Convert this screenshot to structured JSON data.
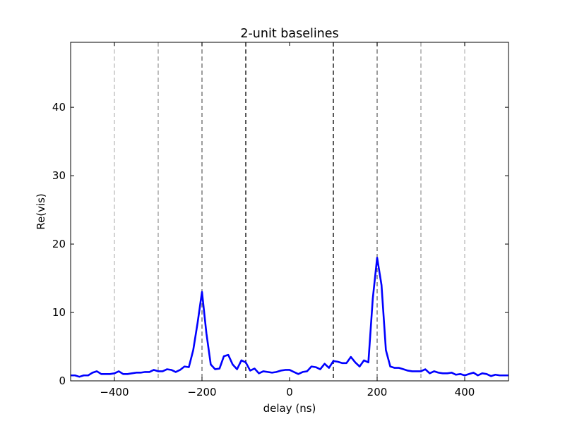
{
  "chart_data": {
    "type": "line",
    "title": "2-unit baselines",
    "xlabel": "delay (ns)",
    "ylabel": "Re(vis)",
    "xlim": [
      -500,
      500
    ],
    "ylim": [
      0,
      49.5
    ],
    "xticks": [
      -400,
      -200,
      0,
      200,
      400
    ],
    "xtick_labels": [
      "−400",
      "−200",
      "0",
      "200",
      "400"
    ],
    "yticks": [
      0,
      10,
      20,
      30,
      40
    ],
    "ytick_labels": [
      "0",
      "10",
      "20",
      "30",
      "40"
    ],
    "grid": false,
    "vlines": [
      {
        "x": -400,
        "color": "#bbbbbb"
      },
      {
        "x": -300,
        "color": "#999999"
      },
      {
        "x": -200,
        "color": "#666666"
      },
      {
        "x": -100,
        "color": "#000000"
      },
      {
        "x": 100,
        "color": "#000000"
      },
      {
        "x": 200,
        "color": "#666666"
      },
      {
        "x": 300,
        "color": "#999999"
      },
      {
        "x": 400,
        "color": "#bbbbbb"
      }
    ],
    "series": [
      {
        "color": "#0000ff",
        "x": [
          -500,
          -490,
          -480,
          -470,
          -460,
          -450,
          -440,
          -430,
          -420,
          -410,
          -400,
          -390,
          -380,
          -370,
          -360,
          -350,
          -340,
          -330,
          -320,
          -310,
          -300,
          -290,
          -280,
          -270,
          -260,
          -250,
          -240,
          -230,
          -220,
          -210,
          -200,
          -190,
          -180,
          -170,
          -160,
          -150,
          -140,
          -130,
          -120,
          -110,
          -100,
          -90,
          -80,
          -70,
          -60,
          -50,
          -40,
          -30,
          -20,
          -10,
          0,
          10,
          20,
          30,
          40,
          50,
          60,
          70,
          80,
          90,
          100,
          110,
          120,
          130,
          140,
          150,
          160,
          170,
          180,
          190,
          200,
          210,
          220,
          230,
          240,
          250,
          260,
          270,
          280,
          290,
          300,
          310,
          320,
          330,
          340,
          350,
          360,
          370,
          380,
          390,
          400,
          410,
          420,
          430,
          440,
          450,
          460,
          470,
          480,
          490,
          500
        ],
        "y": [
          0.8,
          0.8,
          0.6,
          0.8,
          0.8,
          1.2,
          1.4,
          1.0,
          1.0,
          1.0,
          1.1,
          1.4,
          1.0,
          1.0,
          1.1,
          1.2,
          1.2,
          1.3,
          1.3,
          1.6,
          1.4,
          1.4,
          1.7,
          1.6,
          1.3,
          1.6,
          2.1,
          2.0,
          4.5,
          8.5,
          13.0,
          7.0,
          2.4,
          1.7,
          1.8,
          3.6,
          3.8,
          2.4,
          1.7,
          3.0,
          2.7,
          1.5,
          1.8,
          1.1,
          1.4,
          1.3,
          1.2,
          1.3,
          1.5,
          1.6,
          1.6,
          1.3,
          1.0,
          1.3,
          1.4,
          2.1,
          2.0,
          1.7,
          2.5,
          1.9,
          2.9,
          2.8,
          2.6,
          2.6,
          3.5,
          2.7,
          2.1,
          3.0,
          2.7,
          12.0,
          18.0,
          14.0,
          4.5,
          2.1,
          1.9,
          1.9,
          1.7,
          1.5,
          1.4,
          1.4,
          1.4,
          1.7,
          1.1,
          1.4,
          1.2,
          1.1,
          1.1,
          1.2,
          0.9,
          1.0,
          0.8,
          1.0,
          1.2,
          0.8,
          1.1,
          1.0,
          0.7,
          0.9,
          0.8,
          0.8,
          0.8
        ]
      }
    ]
  }
}
